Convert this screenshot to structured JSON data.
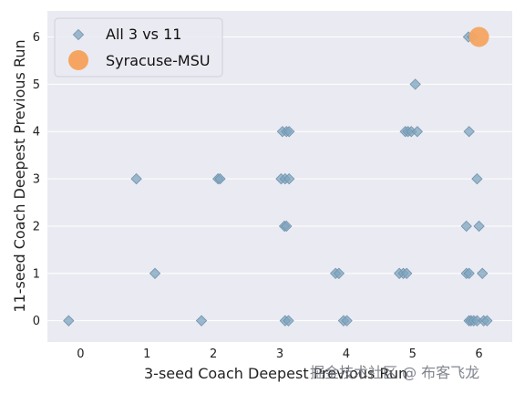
{
  "chart_data": {
    "type": "scatter",
    "xlabel": "3-seed Coach Deepest Previous Run",
    "ylabel": "11-seed Coach Deepest Previous Run",
    "xlim": [
      -0.5,
      6.5
    ],
    "ylim": [
      -0.45,
      6.55
    ],
    "xticks": [
      "0",
      "1",
      "2",
      "3",
      "4",
      "5",
      "6"
    ],
    "yticks": [
      "0",
      "1",
      "2",
      "3",
      "4",
      "5",
      "6"
    ],
    "grid": true,
    "legend_position": "top-left",
    "series": [
      {
        "name": "All 3 vs 11",
        "marker": "diamond",
        "color": "#7fa4bd",
        "points": [
          [
            -0.18,
            0
          ],
          [
            1.82,
            0
          ],
          [
            3.08,
            0
          ],
          [
            3.13,
            0
          ],
          [
            3.96,
            0
          ],
          [
            4.01,
            0
          ],
          [
            5.85,
            0
          ],
          [
            5.88,
            0
          ],
          [
            5.92,
            0
          ],
          [
            5.97,
            0
          ],
          [
            6.07,
            0
          ],
          [
            6.12,
            0
          ],
          [
            1.12,
            1
          ],
          [
            3.84,
            1
          ],
          [
            3.89,
            1
          ],
          [
            4.8,
            1
          ],
          [
            4.86,
            1
          ],
          [
            4.91,
            1
          ],
          [
            5.81,
            1
          ],
          [
            5.85,
            1
          ],
          [
            6.05,
            1
          ],
          [
            3.07,
            2
          ],
          [
            3.1,
            2
          ],
          [
            5.81,
            2
          ],
          [
            6.0,
            2
          ],
          [
            0.84,
            3
          ],
          [
            2.07,
            3
          ],
          [
            2.1,
            3
          ],
          [
            3.02,
            3
          ],
          [
            3.08,
            3
          ],
          [
            3.14,
            3
          ],
          [
            5.97,
            3
          ],
          [
            3.04,
            4
          ],
          [
            3.1,
            4
          ],
          [
            3.14,
            4
          ],
          [
            4.89,
            4
          ],
          [
            4.93,
            4
          ],
          [
            4.98,
            4
          ],
          [
            5.07,
            4
          ],
          [
            5.85,
            4
          ],
          [
            5.04,
            5
          ],
          [
            5.84,
            6
          ],
          [
            5.9,
            6
          ]
        ]
      },
      {
        "name": "Syracuse-MSU",
        "marker": "circle",
        "color": "#f5a561",
        "points": [
          [
            6.0,
            6.0
          ]
        ]
      }
    ]
  },
  "watermark": "掘金技术社区 @ 布客飞龙"
}
